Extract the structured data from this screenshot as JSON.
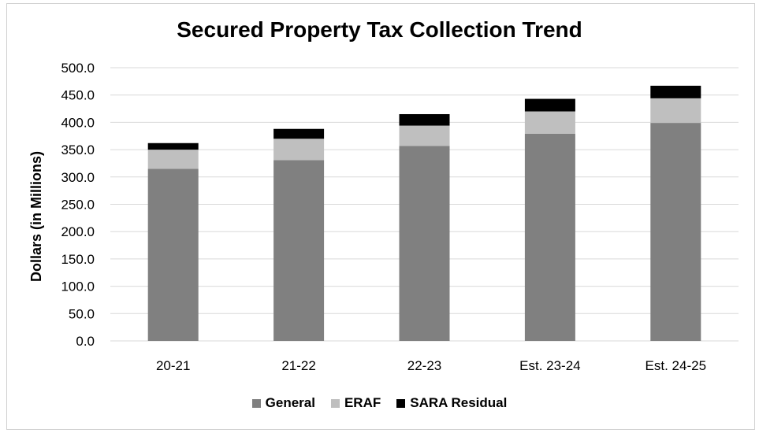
{
  "chart_data": {
    "type": "bar",
    "stacked": true,
    "title": "Secured Property Tax Collection Trend",
    "xlabel": "",
    "ylabel": "Dollars (in Millions)",
    "ylim": [
      0,
      500
    ],
    "yticks": [
      "0.0",
      "50.0",
      "100.0",
      "150.0",
      "200.0",
      "250.0",
      "300.0",
      "350.0",
      "400.0",
      "450.0",
      "500.0"
    ],
    "categories": [
      "20-21",
      "21-22",
      "22-23",
      "Est. 23-24",
      "Est. 24-25"
    ],
    "series": [
      {
        "name": "General",
        "color": "#808080",
        "values": [
          315,
          331,
          357,
          379,
          399
        ]
      },
      {
        "name": "ERAF",
        "color": "#bfbfbf",
        "values": [
          35,
          39,
          37,
          41,
          45
        ]
      },
      {
        "name": "SARA Residual",
        "color": "#000000",
        "values": [
          12,
          18,
          21,
          23,
          23
        ]
      }
    ],
    "grid": true,
    "legend_position": "bottom"
  }
}
